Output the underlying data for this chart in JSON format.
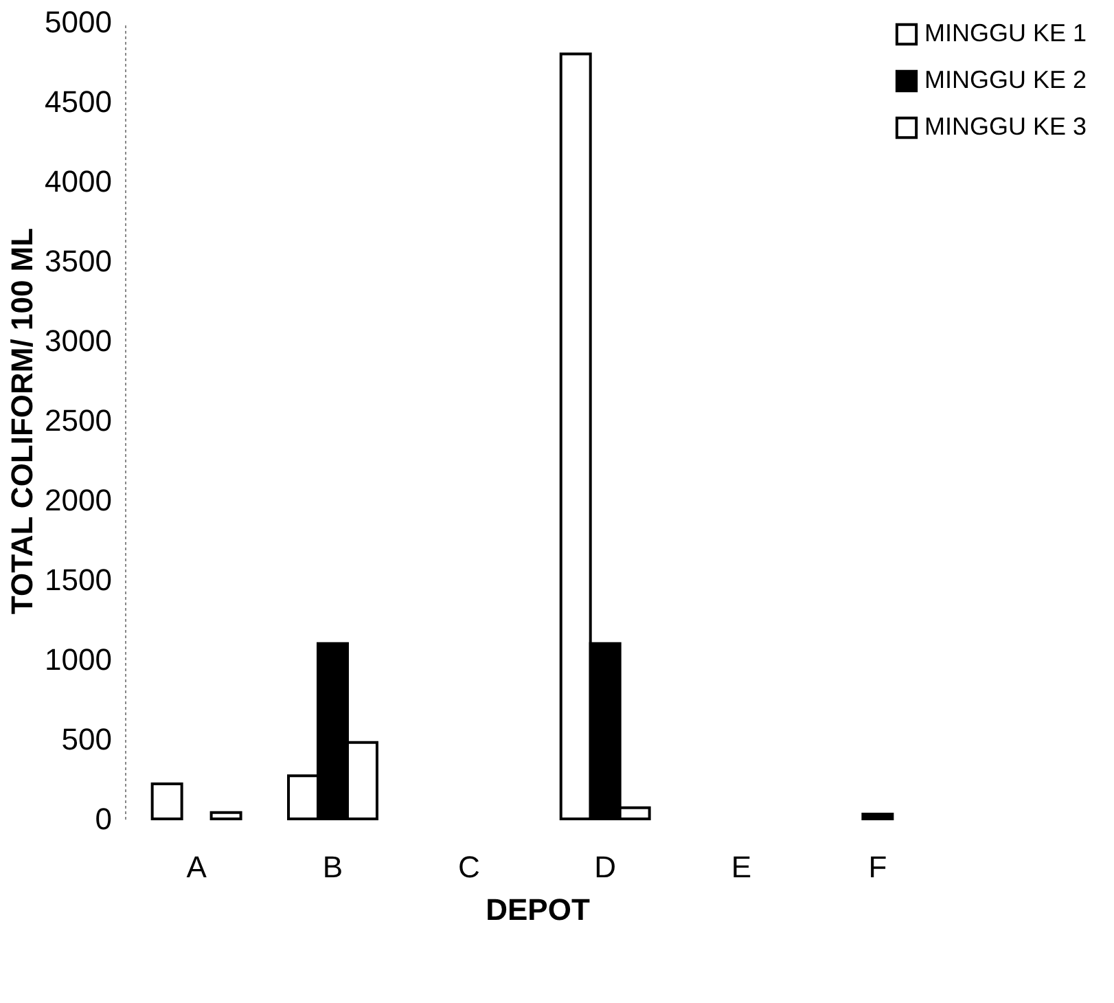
{
  "chart_data": {
    "type": "bar",
    "xlabel": "DEPOT",
    "ylabel": "TOTAL COLIFORM/ 100 ML",
    "categories": [
      "A",
      "B",
      "C",
      "D",
      "E",
      "F"
    ],
    "series": [
      {
        "name": "MINGGU KE 1",
        "color": "#ffffff",
        "values": [
          220,
          270,
          null,
          4800,
          null,
          null
        ]
      },
      {
        "name": "MINGGU KE 2",
        "color": "#000000",
        "values": [
          null,
          1100,
          null,
          1100,
          null,
          30
        ]
      },
      {
        "name": "MINGGU KE 3",
        "color": "#ffffff",
        "values": [
          40,
          480,
          null,
          70,
          null,
          null
        ]
      }
    ],
    "ylim": [
      0,
      5000
    ],
    "yticks": [
      0,
      500,
      1000,
      1500,
      2000,
      2500,
      3000,
      3500,
      4000,
      4500,
      5000
    ],
    "grid": false,
    "legend": "top right"
  }
}
